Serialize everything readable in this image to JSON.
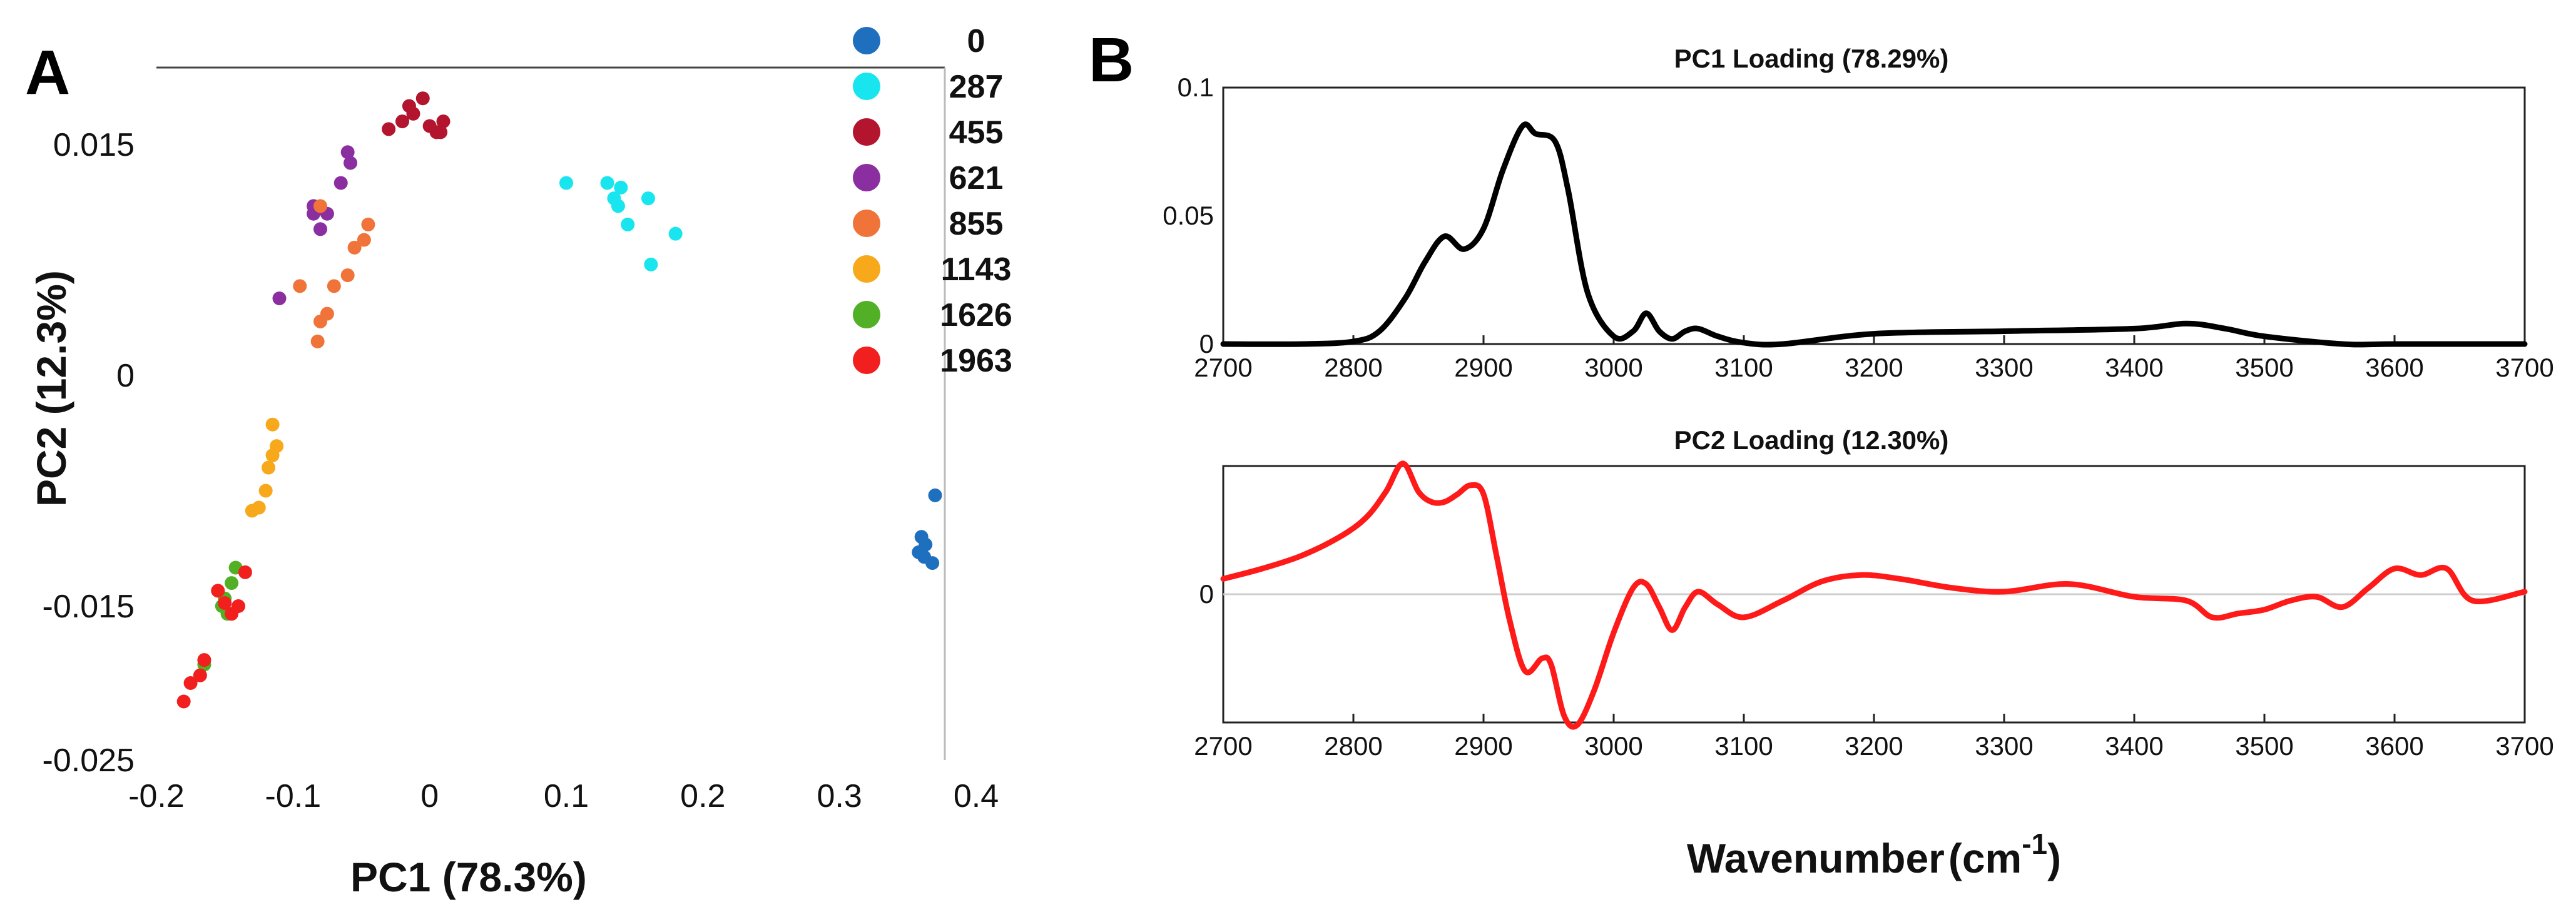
{
  "chart_data": [
    {
      "panel": "A",
      "type": "scatter",
      "xlabel": "PC1 (78.3%)",
      "ylabel": "PC2 (12.3%)",
      "xlim": [
        -0.2,
        0.4
      ],
      "ylim": [
        -0.025,
        0.02
      ],
      "x_ticks": [
        -0.2,
        -0.1,
        0,
        0.1,
        0.2,
        0.3,
        0.4
      ],
      "x_tick_labels": [
        "-0.2",
        "-0.1",
        "0",
        "0.1",
        "0.2",
        "0.3",
        "0.4"
      ],
      "y_ticks": [
        0.015,
        0,
        -0.015,
        -0.025
      ],
      "y_tick_labels": [
        "0.015",
        "0",
        "-0.015",
        "-0.025"
      ],
      "series": [
        {
          "name": "0",
          "color": "#1f6fbf",
          "points": [
            [
              0.358,
              -0.0115
            ],
            [
              0.362,
              -0.0118
            ],
            [
              0.368,
              -0.0122
            ],
            [
              0.36,
              -0.0105
            ],
            [
              0.37,
              -0.0078
            ],
            [
              0.363,
              -0.011
            ]
          ]
        },
        {
          "name": "287",
          "color": "#19e5ef",
          "points": [
            [
              0.1,
              0.0125
            ],
            [
              0.13,
              0.0125
            ],
            [
              0.135,
              0.0115
            ],
            [
              0.14,
              0.0122
            ],
            [
              0.145,
              0.0098
            ],
            [
              0.16,
              0.0115
            ],
            [
              0.18,
              0.0092
            ],
            [
              0.162,
              0.0072
            ],
            [
              0.138,
              0.011
            ]
          ]
        },
        {
          "name": "455",
          "color": "#b3142e",
          "points": [
            [
              -0.03,
              0.016
            ],
            [
              -0.02,
              0.0165
            ],
            [
              -0.012,
              0.017
            ],
            [
              -0.005,
              0.018
            ],
            [
              0.005,
              0.0158
            ],
            [
              0.01,
              0.0165
            ],
            [
              -0.015,
              0.0175
            ],
            [
              0,
              0.0162
            ],
            [
              0.008,
              0.0158
            ]
          ]
        },
        {
          "name": "621",
          "color": "#8b2fa0",
          "points": [
            [
              -0.11,
              0.005
            ],
            [
              -0.085,
              0.0105
            ],
            [
              -0.08,
              0.0095
            ],
            [
              -0.075,
              0.0105
            ],
            [
              -0.06,
              0.0145
            ],
            [
              -0.058,
              0.0138
            ],
            [
              -0.065,
              0.0125
            ],
            [
              -0.085,
              0.011
            ]
          ]
        },
        {
          "name": "855",
          "color": "#f0743a",
          "points": [
            [
              -0.06,
              0.0065
            ],
            [
              -0.055,
              0.0083
            ],
            [
              -0.048,
              0.0088
            ],
            [
              -0.045,
              0.0098
            ],
            [
              -0.08,
              0.0035
            ],
            [
              -0.075,
              0.004
            ],
            [
              -0.082,
              0.0022
            ],
            [
              -0.095,
              0.0058
            ],
            [
              -0.07,
              0.0058
            ],
            [
              -0.08,
              0.011
            ]
          ]
        },
        {
          "name": "1143",
          "color": "#f7a81b",
          "points": [
            [
              -0.115,
              -0.0032
            ],
            [
              -0.112,
              -0.0046
            ],
            [
              -0.115,
              -0.0052
            ],
            [
              -0.118,
              -0.006
            ],
            [
              -0.12,
              -0.0075
            ],
            [
              -0.125,
              -0.0086
            ],
            [
              -0.13,
              -0.0088
            ]
          ]
        },
        {
          "name": "1626",
          "color": "#52b026",
          "points": [
            [
              -0.15,
              -0.0145
            ],
            [
              -0.148,
              -0.0155
            ],
            [
              -0.145,
              -0.0135
            ],
            [
              -0.142,
              -0.0125
            ],
            [
              -0.152,
              -0.015
            ],
            [
              -0.165,
              -0.0188
            ]
          ]
        },
        {
          "name": "1963",
          "color": "#f21f1f",
          "points": [
            [
              -0.18,
              -0.0212
            ],
            [
              -0.175,
              -0.02
            ],
            [
              -0.168,
              -0.0195
            ],
            [
              -0.165,
              -0.0185
            ],
            [
              -0.155,
              -0.014
            ],
            [
              -0.15,
              -0.0148
            ],
            [
              -0.145,
              -0.0155
            ],
            [
              -0.14,
              -0.015
            ],
            [
              -0.135,
              -0.0128
            ]
          ]
        }
      ]
    },
    {
      "panel": "B",
      "type": "line",
      "title": "PC1 Loading (78.29%)",
      "xlim": [
        2700,
        3700
      ],
      "ylim": [
        0,
        0.1
      ],
      "x_ticks": [
        2700,
        2800,
        2900,
        3000,
        3100,
        3200,
        3300,
        3400,
        3500,
        3600,
        3700
      ],
      "y_ticks": [
        0,
        0.05,
        0.1
      ],
      "y_tick_labels": [
        "0",
        "0.05",
        "0.1"
      ],
      "color": "#000000",
      "x": [
        2700,
        2760,
        2800,
        2820,
        2840,
        2855,
        2870,
        2885,
        2900,
        2915,
        2930,
        2940,
        2955,
        2965,
        2980,
        3000,
        3015,
        3025,
        3035,
        3045,
        3055,
        3065,
        3080,
        3100,
        3130,
        3200,
        3300,
        3400,
        3440,
        3470,
        3500,
        3560,
        3600,
        3700
      ],
      "y": [
        0,
        0,
        0.001,
        0.005,
        0.018,
        0.032,
        0.042,
        0.037,
        0.045,
        0.068,
        0.085,
        0.082,
        0.079,
        0.06,
        0.02,
        0.003,
        0.005,
        0.012,
        0.005,
        0.002,
        0.005,
        0.006,
        0.003,
        0.0005,
        0,
        0.004,
        0.005,
        0.006,
        0.008,
        0.006,
        0.003,
        0,
        0,
        0
      ]
    },
    {
      "panel": "B",
      "type": "line",
      "title": "PC2 Loading (12.30%)",
      "xlabel": "Wavenumber (cm-1)",
      "xlabel_text": "Wavenumber",
      "xlabel_unit_open": "(cm",
      "xlabel_unit_exp": "-1",
      "xlabel_unit_close": ")",
      "xlim": [
        2700,
        3700
      ],
      "ylim": [
        -1,
        1
      ],
      "x_ticks": [
        2700,
        2800,
        2900,
        3000,
        3100,
        3200,
        3300,
        3400,
        3500,
        3600,
        3700
      ],
      "y_ticks": [
        0
      ],
      "y_tick_labels": [
        "0"
      ],
      "zero_line": true,
      "color": "#ff1a1a",
      "x": [
        2700,
        2730,
        2760,
        2790,
        2810,
        2825,
        2838,
        2850,
        2860,
        2870,
        2880,
        2890,
        2900,
        2910,
        2920,
        2932,
        2945,
        2952,
        2962,
        2972,
        2985,
        3000,
        3015,
        3025,
        3035,
        3045,
        3055,
        3065,
        3080,
        3100,
        3130,
        3160,
        3190,
        3220,
        3260,
        3300,
        3350,
        3400,
        3440,
        3460,
        3480,
        3500,
        3520,
        3540,
        3560,
        3580,
        3600,
        3620,
        3640,
        3660,
        3700
      ],
      "y": [
        0.12,
        0.2,
        0.3,
        0.45,
        0.6,
        0.8,
        1.02,
        0.8,
        0.72,
        0.72,
        0.78,
        0.85,
        0.78,
        0.3,
        -0.2,
        -0.6,
        -0.5,
        -0.55,
        -0.95,
        -1.02,
        -0.75,
        -0.3,
        0.05,
        0.08,
        -0.1,
        -0.28,
        -0.1,
        0.02,
        -0.08,
        -0.18,
        -0.05,
        0.1,
        0.15,
        0.12,
        0.05,
        0.02,
        0.08,
        -0.02,
        -0.05,
        -0.18,
        -0.15,
        -0.12,
        -0.05,
        -0.02,
        -0.1,
        0.05,
        0.2,
        0.15,
        0.2,
        -0.05,
        0.02
      ]
    }
  ],
  "legend": [
    {
      "label": "0",
      "color": "#1f6fbf"
    },
    {
      "label": "287",
      "color": "#19e5ef"
    },
    {
      "label": "455",
      "color": "#b3142e"
    },
    {
      "label": "621",
      "color": "#8b2fa0"
    },
    {
      "label": "855",
      "color": "#f0743a"
    },
    {
      "label": "1143",
      "color": "#f7a81b"
    },
    {
      "label": "1626",
      "color": "#52b026"
    },
    {
      "label": "1963",
      "color": "#f21f1f"
    }
  ],
  "panel_labels": {
    "a": "A",
    "b": "B"
  }
}
